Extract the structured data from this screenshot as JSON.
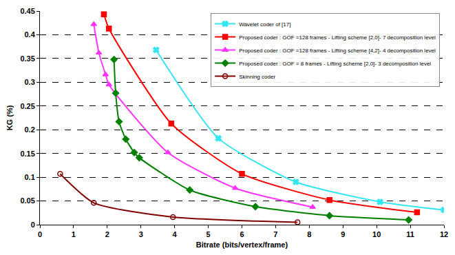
{
  "chart_data": {
    "type": "line",
    "x_label": "Bitrate (bits/vertex/frame)",
    "y_label": "KG (%)",
    "xlim": [
      0,
      12
    ],
    "xticks": [
      0,
      1,
      2,
      3,
      4,
      5,
      6,
      7,
      8,
      9,
      10,
      11,
      12
    ],
    "ylim": [
      0,
      0.45
    ],
    "yticks": [
      0,
      0.05,
      0.1,
      0.15,
      0.2,
      0.25,
      0.3,
      0.35,
      0.4,
      0.45
    ],
    "grid": true,
    "legend": "upper right",
    "series": [
      {
        "name": "Wavelet coder of [17]",
        "color": "#33e6f0",
        "marker": "x",
        "x": [
          3.45,
          5.3,
          7.6,
          10.1,
          12.0
        ],
        "values": [
          0.368,
          0.182,
          0.09,
          0.048,
          0.031
        ]
      },
      {
        "name": "Proposed coder : GOF =128 frames - Lifting scheme [2,0]- 7 decomposition level",
        "color": "#ff0000",
        "marker": "square",
        "x": [
          1.9,
          2.05,
          3.9,
          6.0,
          8.6,
          11.2
        ],
        "values": [
          0.443,
          0.413,
          0.213,
          0.107,
          0.052,
          0.026
        ]
      },
      {
        "name": "Proposed coder : GOF =128 frames - Lifting scheme [4,2]- 4 decomposition level",
        "color": "#ff33ff",
        "marker": "triangle-up",
        "x": [
          1.6,
          1.75,
          1.95,
          2.05,
          3.8,
          5.8,
          8.1
        ],
        "values": [
          0.422,
          0.362,
          0.316,
          0.295,
          0.152,
          0.077,
          0.037
        ]
      },
      {
        "name": "Proposed coder : GOF = 8 frames - Lifting scheme [2,0]- 3 decomposition level",
        "color": "#008000",
        "marker": "diamond",
        "x": [
          2.2,
          2.25,
          2.35,
          2.55,
          2.8,
          2.95,
          4.45,
          6.4,
          8.6,
          10.95
        ],
        "values": [
          0.348,
          0.277,
          0.217,
          0.18,
          0.152,
          0.141,
          0.073,
          0.038,
          0.019,
          0.01
        ]
      },
      {
        "name": "Skinning coder",
        "color": "#800000",
        "marker": "circle-open",
        "x": [
          0.6,
          1.6,
          3.95,
          7.65
        ],
        "values": [
          0.107,
          0.046,
          0.016,
          0.005
        ]
      }
    ]
  }
}
